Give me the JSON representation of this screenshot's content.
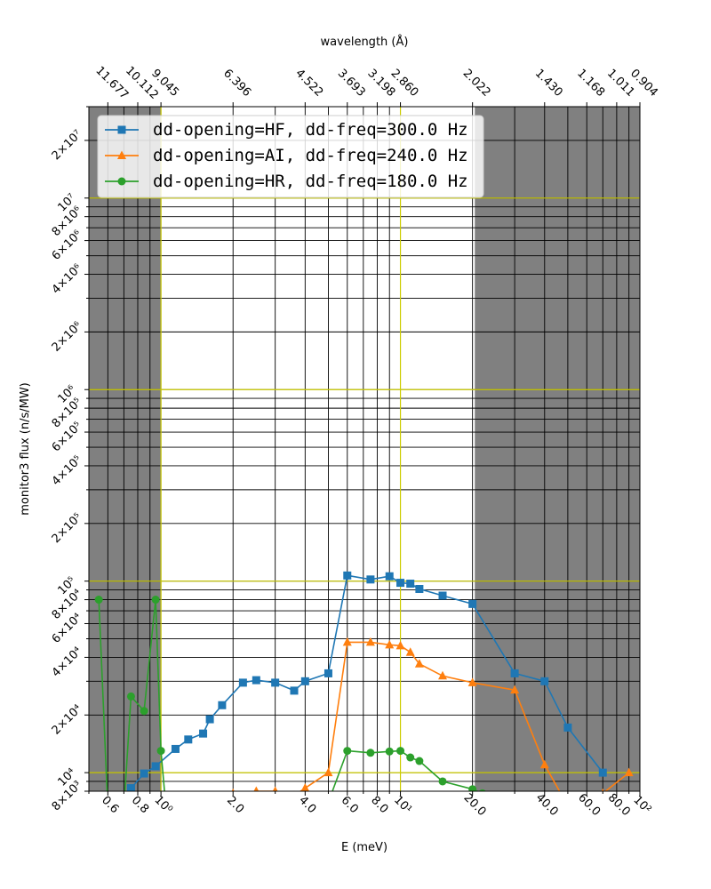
{
  "chart_data": {
    "type": "line",
    "xlabel": "E (meV)",
    "ylabel": "monitor3 flux (n/s/MW)",
    "top_xlabel": "wavelength (Å)",
    "x_scale": "log",
    "y_scale": "log",
    "xlim": [
      0.5,
      100
    ],
    "ylim": [
      8000,
      30000000
    ],
    "grid": true,
    "legend_placement": "upper-left",
    "colors": {
      "shade": "#808080",
      "grid": "#000000",
      "ref_line": "#cccc00",
      "series": [
        "#1f77b4",
        "#ff7f0e",
        "#2ca02c"
      ]
    },
    "shaded_regions": [
      [
        0.5,
        1.0
      ],
      [
        20.45,
        100
      ]
    ],
    "ref_lines_x": [
      1.0,
      10.0
    ],
    "ref_lines_y": [
      10000,
      100000,
      1000000,
      10000000
    ],
    "x_ticks": [
      {
        "value": 0.6,
        "label": "0.6"
      },
      {
        "value": 0.8,
        "label": "0.8"
      },
      {
        "value": 1,
        "label": "10⁰"
      },
      {
        "value": 2,
        "label": "2.0"
      },
      {
        "value": 4,
        "label": "4.0"
      },
      {
        "value": 6,
        "label": "6.0"
      },
      {
        "value": 8,
        "label": "8.0"
      },
      {
        "value": 10,
        "label": "10¹"
      },
      {
        "value": 20,
        "label": "20.0"
      },
      {
        "value": 40,
        "label": "40.0"
      },
      {
        "value": 60,
        "label": "60.0"
      },
      {
        "value": 80,
        "label": "80.0"
      },
      {
        "value": 100,
        "label": "10²"
      }
    ],
    "x_minor_ticks": [
      0.5,
      0.7,
      0.9,
      3,
      5,
      7,
      9,
      30,
      50,
      70,
      90
    ],
    "top_ticks": [
      {
        "value": 0.6,
        "label": "11.677"
      },
      {
        "value": 0.8,
        "label": "10.112"
      },
      {
        "value": 1,
        "label": "9.045"
      },
      {
        "value": 2,
        "label": "6.396"
      },
      {
        "value": 4,
        "label": "4.522"
      },
      {
        "value": 6,
        "label": "3.693"
      },
      {
        "value": 8,
        "label": "3.198"
      },
      {
        "value": 10,
        "label": "2.860"
      },
      {
        "value": 20,
        "label": "2.022"
      },
      {
        "value": 40,
        "label": "1.430"
      },
      {
        "value": 60,
        "label": "1.168"
      },
      {
        "value": 80,
        "label": "1.011"
      },
      {
        "value": 100,
        "label": "0.904"
      }
    ],
    "y_ticks": [
      {
        "value": 8000,
        "label": "8×10³"
      },
      {
        "value": 10000,
        "label": "10⁴"
      },
      {
        "value": 20000,
        "label": "2×10⁴"
      },
      {
        "value": 40000,
        "label": "4×10⁴"
      },
      {
        "value": 60000,
        "label": "6×10⁴"
      },
      {
        "value": 80000,
        "label": "8×10⁴"
      },
      {
        "value": 100000,
        "label": "10⁵"
      },
      {
        "value": 200000,
        "label": "2×10⁵"
      },
      {
        "value": 400000,
        "label": "4×10⁵"
      },
      {
        "value": 600000,
        "label": "6×10⁵"
      },
      {
        "value": 800000,
        "label": "8×10⁵"
      },
      {
        "value": 1000000,
        "label": "10⁶"
      },
      {
        "value": 2000000,
        "label": "2×10⁶"
      },
      {
        "value": 4000000,
        "label": "4×10⁶"
      },
      {
        "value": 6000000,
        "label": "6×10⁶"
      },
      {
        "value": 8000000,
        "label": "8×10⁶"
      },
      {
        "value": 10000000,
        "label": "10⁷"
      },
      {
        "value": 20000000,
        "label": "2×10⁷"
      }
    ],
    "y_minor_ticks": [
      9000,
      30000,
      50000,
      70000,
      90000,
      300000,
      500000,
      700000,
      900000,
      3000000,
      5000000,
      7000000,
      9000000,
      30000000
    ],
    "series": [
      {
        "name": "dd-opening=HF, dd-freq=300.0 Hz",
        "marker": "square",
        "x": [
          0.75,
          0.85,
          0.95,
          1.15,
          1.3,
          1.5,
          1.6,
          1.8,
          2.2,
          2.5,
          3.0,
          3.6,
          4.0,
          5.0,
          6.0,
          7.5,
          9.0,
          10.0,
          11.0,
          12.0,
          15.0,
          20.0,
          30.0,
          40.0,
          50.0,
          70.0
        ],
        "y": [
          8300,
          9900,
          10800,
          13300,
          14900,
          16000,
          19000,
          22500,
          29500,
          30400,
          29500,
          26800,
          30000,
          33000,
          107000,
          102000,
          106000,
          98000,
          97000,
          91000,
          84000,
          76000,
          33000,
          30000,
          17200,
          10000
        ]
      },
      {
        "name": "dd-opening=AI, dd-freq=240.0 Hz",
        "marker": "triangle",
        "x": [
          2.0,
          2.5,
          3.0,
          3.6,
          4.0,
          5.0,
          6.0,
          7.5,
          9.0,
          10.0,
          11.0,
          12.0,
          15.0,
          20.0,
          30.0,
          40.0,
          50.0,
          70.0,
          90.0
        ],
        "y": [
          7800,
          8000,
          8000,
          7600,
          8300,
          10000,
          48000,
          48000,
          46500,
          46000,
          42500,
          37000,
          32000,
          29500,
          27000,
          11000,
          6700,
          7800,
          10000
        ]
      },
      {
        "name": "dd-opening=HR, dd-freq=180.0 Hz",
        "marker": "circle",
        "x": [
          0.55,
          0.6,
          0.7,
          0.75,
          0.85,
          0.95,
          1.0,
          1.05,
          4.5,
          5.0,
          6.0,
          7.5,
          9.0,
          10.0,
          11.0,
          12.0,
          15.0,
          20.0,
          22.0
        ],
        "y": [
          80000,
          6500,
          6500,
          25000,
          21000,
          80000,
          13000,
          6500,
          6500,
          7000,
          13000,
          12700,
          12900,
          13000,
          12000,
          11500,
          9000,
          8200,
          7800
        ]
      }
    ]
  }
}
